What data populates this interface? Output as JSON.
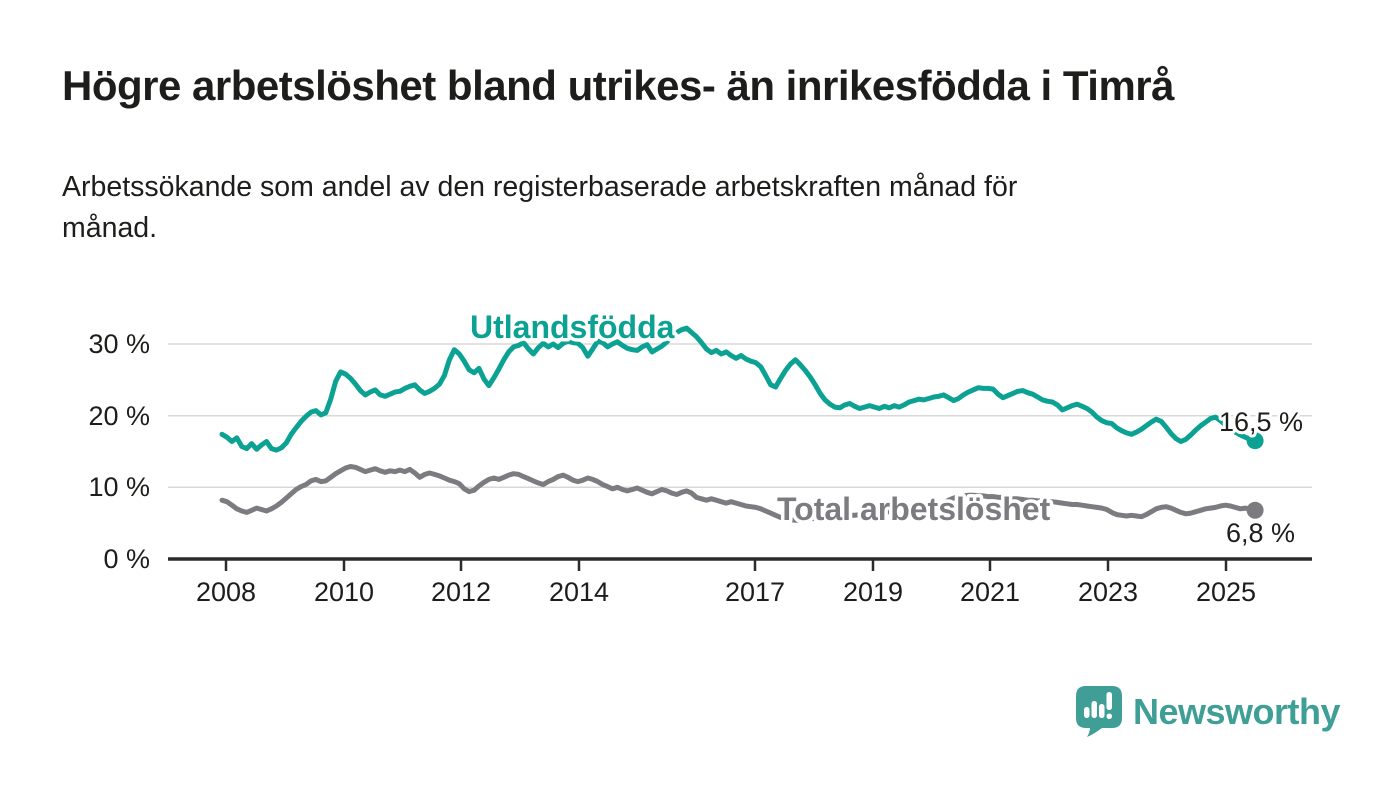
{
  "header": {},
  "chart_data": {
    "type": "line",
    "title": "Högre arbetslöshet bland utrikes- än inrikesfödda i Timrå",
    "subtitle_lines": [
      "Arbetssökande som andel av den registerbaserade arbetskraften månad för",
      "månad."
    ],
    "frequency": "monthly",
    "x_start": "2008-01",
    "x_end": "2025-06",
    "xlim": [
      2007.0,
      2026.5
    ],
    "ylim": [
      0,
      33
    ],
    "grid": "horizontal",
    "legend": "inline-labels",
    "x_ticks": [
      "2008",
      "2010",
      "2012",
      "2014",
      "2017",
      "2019",
      "2021",
      "2023",
      "2025"
    ],
    "y_ticks": [
      "30 %",
      "20 %",
      "10 %",
      "0 %"
    ],
    "series": [
      {
        "name": "Utlandsfödda",
        "color": "#0ca293",
        "end_label": "16,5 %",
        "latest_value": 16.5,
        "values": [
          17.4,
          17.0,
          16.4,
          16.9,
          15.7,
          15.4,
          16.1,
          15.3,
          15.9,
          16.4,
          15.4,
          15.2,
          15.5,
          16.2,
          17.4,
          18.3,
          19.2,
          19.9,
          20.5,
          20.7,
          20.1,
          20.4,
          22.3,
          24.8,
          26.1,
          25.8,
          25.2,
          24.4,
          23.5,
          22.9,
          23.3,
          23.6,
          22.9,
          22.7,
          23.0,
          23.3,
          23.4,
          23.8,
          24.1,
          24.3,
          23.6,
          23.1,
          23.4,
          23.8,
          24.4,
          25.6,
          27.8,
          29.2,
          28.6,
          27.6,
          26.4,
          26.0,
          26.6,
          25.1,
          24.2,
          25.3,
          26.5,
          27.8,
          28.9,
          29.6,
          29.8,
          30.2,
          29.3,
          28.6,
          29.5,
          30.1,
          29.6,
          30.0,
          29.5,
          30.1,
          30.4,
          30.2,
          30.1,
          29.5,
          28.3,
          29.3,
          30.4,
          30.2,
          29.6,
          30.0,
          30.3,
          29.8,
          29.4,
          29.2,
          29.1,
          29.6,
          29.9,
          28.9,
          29.3,
          29.7,
          30.3,
          31.0,
          31.6,
          32.0,
          32.2,
          31.6,
          31.0,
          30.2,
          29.3,
          28.8,
          29.1,
          28.6,
          28.9,
          28.4,
          28.0,
          28.4,
          27.9,
          27.6,
          27.4,
          26.8,
          25.6,
          24.3,
          24.0,
          25.2,
          26.3,
          27.2,
          27.8,
          27.1,
          26.3,
          25.4,
          24.3,
          23.1,
          22.2,
          21.6,
          21.2,
          21.1,
          21.5,
          21.7,
          21.3,
          21.0,
          21.2,
          21.4,
          21.2,
          21.0,
          21.3,
          21.1,
          21.4,
          21.2,
          21.5,
          21.9,
          22.1,
          22.3,
          22.2,
          22.4,
          22.6,
          22.7,
          22.9,
          22.5,
          22.1,
          22.4,
          22.9,
          23.3,
          23.6,
          23.9,
          23.8,
          23.8,
          23.7,
          23.0,
          22.5,
          22.8,
          23.1,
          23.4,
          23.5,
          23.2,
          23.0,
          22.6,
          22.2,
          22.0,
          21.9,
          21.5,
          20.8,
          21.1,
          21.4,
          21.6,
          21.3,
          21.0,
          20.5,
          19.8,
          19.3,
          19.0,
          18.9,
          18.3,
          17.9,
          17.6,
          17.4,
          17.7,
          18.1,
          18.6,
          19.1,
          19.5,
          19.2,
          18.4,
          17.5,
          16.8,
          16.4,
          16.7,
          17.3,
          18.0,
          18.6,
          19.1,
          19.6,
          19.8,
          19.3,
          18.7,
          18.2,
          17.7,
          17.3,
          17.0,
          16.7,
          16.5
        ]
      },
      {
        "name": "Total arbetslöshet",
        "color": "#7c7c80",
        "end_label": "6,8 %",
        "latest_value": 6.8,
        "values": [
          8.2,
          8.0,
          7.5,
          7.0,
          6.7,
          6.5,
          6.8,
          7.1,
          6.9,
          6.7,
          7.0,
          7.4,
          7.9,
          8.5,
          9.1,
          9.7,
          10.1,
          10.4,
          10.9,
          11.1,
          10.8,
          10.9,
          11.4,
          11.9,
          12.3,
          12.7,
          12.9,
          12.8,
          12.5,
          12.2,
          12.4,
          12.6,
          12.3,
          12.1,
          12.3,
          12.2,
          12.4,
          12.2,
          12.5,
          12.0,
          11.4,
          11.8,
          12.0,
          11.8,
          11.6,
          11.3,
          11.0,
          10.8,
          10.5,
          9.8,
          9.4,
          9.6,
          10.2,
          10.7,
          11.1,
          11.3,
          11.1,
          11.4,
          11.7,
          11.9,
          11.8,
          11.5,
          11.2,
          10.9,
          10.6,
          10.4,
          10.8,
          11.1,
          11.5,
          11.7,
          11.4,
          11.0,
          10.8,
          11.0,
          11.3,
          11.1,
          10.8,
          10.4,
          10.1,
          9.8,
          10.0,
          9.7,
          9.5,
          9.7,
          9.9,
          9.6,
          9.3,
          9.1,
          9.4,
          9.7,
          9.5,
          9.2,
          9.0,
          9.3,
          9.5,
          9.2,
          8.6,
          8.4,
          8.2,
          8.4,
          8.2,
          8.0,
          7.8,
          8.0,
          7.8,
          7.6,
          7.4,
          7.3,
          7.2,
          7.0,
          6.7,
          6.4,
          6.1,
          5.8,
          5.6,
          5.5,
          5.4,
          5.4,
          5.5,
          5.6,
          5.7,
          5.8,
          5.8,
          5.9,
          5.9,
          6.0,
          6.0,
          6.1,
          6.1,
          6.2,
          6.3,
          6.4,
          6.4,
          6.5,
          6.5,
          6.6,
          6.6,
          6.7,
          6.7,
          6.8,
          6.8,
          6.9,
          7.0,
          7.1,
          7.3,
          7.5,
          7.8,
          8.2,
          8.5,
          8.7,
          8.8,
          8.9,
          8.9,
          8.8,
          8.8,
          8.7,
          8.7,
          8.6,
          8.6,
          8.5,
          8.4,
          8.4,
          8.3,
          8.2,
          8.2,
          8.1,
          8.1,
          8.0,
          8.0,
          7.9,
          7.8,
          7.7,
          7.6,
          7.6,
          7.5,
          7.4,
          7.3,
          7.2,
          7.1,
          6.9,
          6.5,
          6.2,
          6.1,
          6.0,
          6.1,
          6.0,
          5.9,
          6.2,
          6.6,
          7.0,
          7.2,
          7.3,
          7.1,
          6.8,
          6.5,
          6.3,
          6.4,
          6.6,
          6.8,
          7.0,
          7.1,
          7.2,
          7.4,
          7.5,
          7.4,
          7.2,
          7.0,
          7.1,
          7.0,
          6.8
        ]
      }
    ]
  },
  "footer": {
    "brand": "Newsworthy",
    "brand_color": "#3f9f96",
    "logo_icon": "speech-bubble-bar-chart-exclamation"
  }
}
